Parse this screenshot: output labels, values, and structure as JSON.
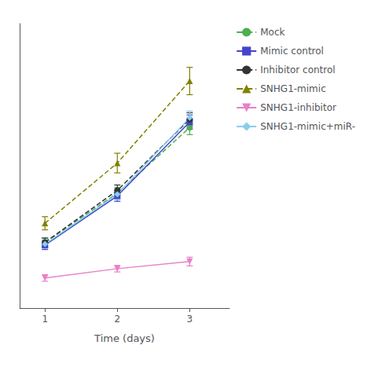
{
  "chart_data": {
    "type": "line",
    "x": [
      1,
      2,
      3
    ],
    "xlabel": "Time (days)",
    "xlim": [
      0.65,
      3.55
    ],
    "xticks": [
      1,
      2,
      3
    ],
    "ylim": [
      -0.2,
      5.0
    ],
    "tick_labels": "x",
    "grid": false,
    "legend": "right",
    "series": [
      {
        "name": "Mock",
        "color": "#4caf50",
        "marker": "circle",
        "line_style": "dashed",
        "values": [
          1.0,
          1.9,
          3.1
        ],
        "errors": [
          0.08,
          0.1,
          0.13
        ]
      },
      {
        "name": "Mimic control",
        "color": "#4444cc",
        "marker": "square",
        "line_style": "solid",
        "values": [
          0.95,
          1.85,
          3.2
        ],
        "errors": [
          0.08,
          0.1,
          0.13
        ]
      },
      {
        "name": "Inhibitor control",
        "color": "#333333",
        "marker": "circle",
        "line_style": "dashed",
        "values": [
          1.0,
          1.95,
          3.25
        ],
        "errors": [
          0.08,
          0.1,
          0.12
        ]
      },
      {
        "name": "SNHG1-mimic",
        "color": "#808000",
        "marker": "triangle-up",
        "line_style": "dashed",
        "values": [
          1.35,
          2.45,
          3.95
        ],
        "errors": [
          0.12,
          0.18,
          0.25
        ]
      },
      {
        "name": "SNHG1-inhibitor",
        "color": "#e880c8",
        "marker": "triangle-down",
        "line_style": "solid",
        "values": [
          0.35,
          0.52,
          0.65
        ],
        "errors": [
          0.06,
          0.06,
          0.08
        ]
      },
      {
        "name": "SNHG1-mimic+miR-",
        "color": "#87ceeb",
        "marker": "diamond",
        "line_style": "solid",
        "values": [
          0.97,
          1.88,
          3.28
        ],
        "errors": [
          0.08,
          0.1,
          0.12
        ]
      }
    ]
  }
}
